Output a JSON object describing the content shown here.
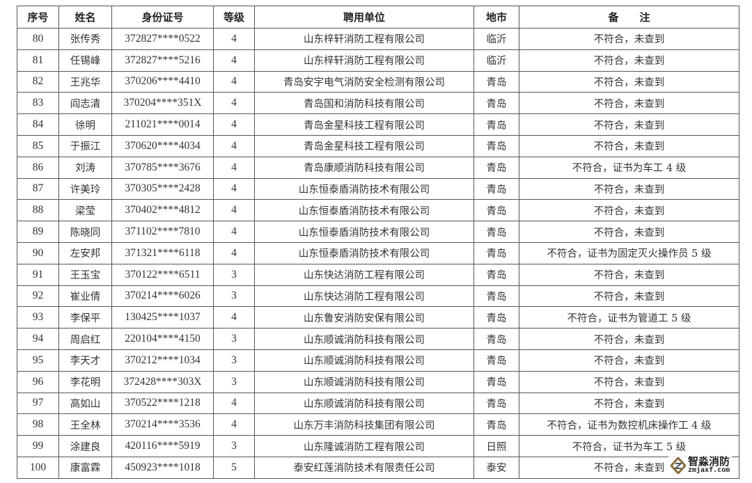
{
  "table": {
    "headers": [
      "序号",
      "姓名",
      "身份证号",
      "等级",
      "聘用单位",
      "地市",
      "备　　注"
    ],
    "rows": [
      [
        "80",
        "张传秀",
        "372827****0522",
        "4",
        "山东梓轩消防工程有限公司",
        "临沂",
        "不符合，未查到"
      ],
      [
        "81",
        "任锡峰",
        "372827****5216",
        "4",
        "山东梓轩消防工程有限公司",
        "临沂",
        "不符合，未查到"
      ],
      [
        "82",
        "王兆华",
        "370206****4410",
        "4",
        "青岛安宇电气消防安全检测有限公司",
        "青岛",
        "不符合，未查到"
      ],
      [
        "83",
        "阎志清",
        "370204****351X",
        "4",
        "青岛国和消防科技有限公司",
        "青岛",
        "不符合，未查到"
      ],
      [
        "84",
        "徐明",
        "211021****0014",
        "4",
        "青岛金星科技工程有限公司",
        "青岛",
        "不符合，未查到"
      ],
      [
        "85",
        "于振江",
        "370620****4034",
        "4",
        "青岛金星科技工程有限公司",
        "青岛",
        "不符合，未查到"
      ],
      [
        "86",
        "刘涛",
        "370785****3676",
        "4",
        "青岛康顺消防科技有限公司",
        "青岛",
        "不符合，证书为车工 4 级"
      ],
      [
        "87",
        "许美玲",
        "370305****2428",
        "4",
        "山东恒泰盾消防技术有限公司",
        "青岛",
        "不符合，未查到"
      ],
      [
        "88",
        "梁莹",
        "370402****4812",
        "4",
        "山东恒泰盾消防技术有限公司",
        "青岛",
        "不符合，未查到"
      ],
      [
        "89",
        "陈晓同",
        "371102****7810",
        "4",
        "山东恒泰盾消防技术有限公司",
        "青岛",
        "不符合，未查到"
      ],
      [
        "90",
        "左安邦",
        "371321****6118",
        "4",
        "山东恒泰盾消防技术有限公司",
        "青岛",
        "不符合，证书为固定灭火操作员 5 级"
      ],
      [
        "91",
        "王玉宝",
        "370122****6511",
        "3",
        "山东快达消防工程有限公司",
        "青岛",
        "不符合，未查到"
      ],
      [
        "92",
        "崔业倩",
        "370214****6026",
        "3",
        "山东快达消防工程有限公司",
        "青岛",
        "不符合，未查到"
      ],
      [
        "93",
        "李保平",
        "130425****1037",
        "4",
        "山东鲁安消防安保有限公司",
        "青岛",
        "不符合，证书为管道工 5 级"
      ],
      [
        "94",
        "周启红",
        "220104****4150",
        "3",
        "山东顺诚消防科技有限公司",
        "青岛",
        "不符合，未查到"
      ],
      [
        "95",
        "李天才",
        "370212****1034",
        "3",
        "山东顺诚消防科技有限公司",
        "青岛",
        "不符合，未查到"
      ],
      [
        "96",
        "李花明",
        "372428****303X",
        "3",
        "山东顺诚消防科技有限公司",
        "青岛",
        "不符合，未查到"
      ],
      [
        "97",
        "高如山",
        "370522****1218",
        "4",
        "山东顺诚消防科技有限公司",
        "青岛",
        "不符合，未查到"
      ],
      [
        "98",
        "王全林",
        "370214****3536",
        "4",
        "山东万丰消防科技集团有限公司",
        "青岛",
        "不符合，证书为数控机床操作工 4 级"
      ],
      [
        "99",
        "涂建良",
        "420116****5919",
        "3",
        "山东隆诚消防工程有限公司",
        "日照",
        "不符合，证书为车工 5 级"
      ],
      [
        "100",
        "康富霖",
        "450923****1018",
        "5",
        "泰安红莲消防技术有限责任公司",
        "泰安",
        "不符合，未查到"
      ]
    ]
  },
  "watermark": {
    "name": "智淼消防",
    "domain": "zmjaxf.com",
    "icon": "diamond-logo-icon"
  }
}
